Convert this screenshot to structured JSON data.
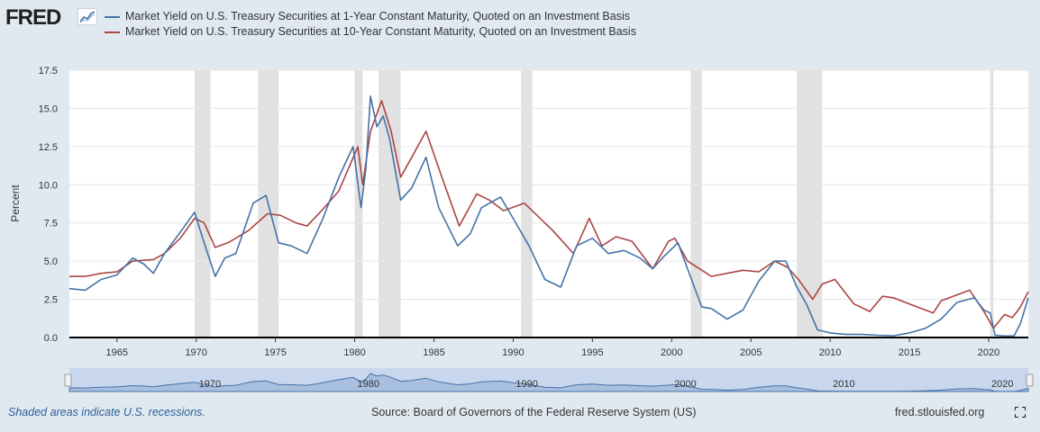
{
  "header": {
    "logo": "FRED"
  },
  "colors": {
    "one_year": "#4572a7",
    "ten_year": "#aa4643",
    "recession": "#e1e1e1",
    "navigator": "#4572a7"
  },
  "footer": {
    "recession_note": "Shaded areas indicate U.S. recessions.",
    "source": "Source: Board of Governors of the Federal Reserve System (US)",
    "site": "fred.stlouisfed.org"
  },
  "chart_data": {
    "type": "line",
    "title": "",
    "xlabel": "",
    "ylabel": "Percent",
    "xlim": [
      1962,
      2022.5
    ],
    "ylim": [
      0,
      17.5
    ],
    "yticks": [
      0.0,
      2.5,
      5.0,
      7.5,
      10.0,
      12.5,
      15.0,
      17.5
    ],
    "ytick_labels": [
      "0.0",
      "2.5",
      "5.0",
      "7.5",
      "10.0",
      "12.5",
      "15.0",
      "17.5"
    ],
    "xticks": [
      1965,
      1970,
      1975,
      1980,
      1985,
      1990,
      1995,
      2000,
      2005,
      2010,
      2015,
      2020
    ],
    "navigator_labels": [
      1970,
      1980,
      1990,
      2000,
      2010,
      2020
    ],
    "recessions": [
      [
        1969.9,
        1970.9
      ],
      [
        1973.9,
        1975.2
      ],
      [
        1980.0,
        1980.5
      ],
      [
        1981.5,
        1982.9
      ],
      [
        1990.5,
        1991.2
      ],
      [
        2001.2,
        2001.9
      ],
      [
        2007.9,
        2009.5
      ],
      [
        2020.1,
        2020.3
      ]
    ],
    "series": [
      {
        "name": "Market Yield on U.S. Treasury Securities at 1-Year Constant Maturity, Quoted on an Investment Basis",
        "x": [
          1962,
          1963,
          1964,
          1965,
          1966,
          1966.7,
          1967.3,
          1968,
          1969,
          1969.9,
          1970.5,
          1971.2,
          1971.8,
          1972.5,
          1973.6,
          1974.4,
          1975.2,
          1976,
          1977,
          1978,
          1979,
          1979.9,
          1980.4,
          1980.7,
          1981,
          1981.4,
          1981.8,
          1982.2,
          1982.9,
          1983.6,
          1984.5,
          1985.3,
          1986.5,
          1987.3,
          1988,
          1989.2,
          1990,
          1991,
          1992,
          1993,
          1994,
          1995,
          1996,
          1997,
          1998,
          1998.8,
          1999.5,
          2000.4,
          2001,
          2001.9,
          2002.5,
          2003.5,
          2004.5,
          2005.5,
          2006.5,
          2007.2,
          2007.9,
          2008.5,
          2009.2,
          2010,
          2011,
          2012,
          2013,
          2014,
          2015,
          2016,
          2017,
          2018,
          2019.1,
          2019.7,
          2020.1,
          2020.4,
          2021,
          2021.6,
          2022,
          2022.5
        ],
        "y": [
          3.2,
          3.1,
          3.8,
          4.1,
          5.2,
          4.8,
          4.2,
          5.5,
          6.9,
          8.2,
          6.2,
          4.0,
          5.2,
          5.5,
          8.8,
          9.3,
          6.2,
          6.0,
          5.5,
          7.8,
          10.5,
          12.5,
          8.5,
          11.0,
          15.8,
          13.8,
          14.5,
          13.0,
          9.0,
          9.8,
          11.8,
          8.5,
          6.0,
          6.8,
          8.5,
          9.2,
          7.8,
          6.0,
          3.8,
          3.3,
          6.0,
          6.5,
          5.5,
          5.7,
          5.2,
          4.5,
          5.3,
          6.2,
          4.5,
          2.0,
          1.9,
          1.2,
          1.8,
          3.7,
          5.0,
          5.0,
          3.3,
          2.2,
          0.5,
          0.3,
          0.2,
          0.2,
          0.15,
          0.12,
          0.3,
          0.6,
          1.2,
          2.3,
          2.6,
          1.8,
          1.6,
          0.15,
          0.1,
          0.1,
          0.9,
          2.6
        ]
      },
      {
        "name": "Market Yield on U.S. Treasury Securities at 10-Year Constant Maturity, Quoted on an Investment Basis",
        "x": [
          1962,
          1963,
          1964,
          1965,
          1966,
          1967.3,
          1968,
          1969,
          1969.9,
          1970.5,
          1971.2,
          1972,
          1973.3,
          1974.5,
          1975.3,
          1976.3,
          1977,
          1978,
          1979,
          1980.2,
          1980.5,
          1981,
          1981.7,
          1982.3,
          1982.9,
          1983.6,
          1984.5,
          1985.5,
          1986.6,
          1987.7,
          1988.5,
          1989.4,
          1990.7,
          1991.5,
          1992.5,
          1993.8,
          1994.8,
          1995.6,
          1996.5,
          1997.5,
          1998.8,
          1999.8,
          2000.2,
          2001,
          2002.5,
          2003.5,
          2004.5,
          2005.5,
          2006.5,
          2007.3,
          2008,
          2008.9,
          2009.5,
          2010.3,
          2010.9,
          2011.5,
          2012.5,
          2013.3,
          2014,
          2015,
          2016.5,
          2017,
          2018.8,
          2019.7,
          2020.3,
          2021,
          2021.5,
          2022,
          2022.5
        ],
        "y": [
          4.0,
          4.0,
          4.2,
          4.3,
          5.0,
          5.1,
          5.5,
          6.5,
          7.8,
          7.5,
          5.9,
          6.2,
          7.0,
          8.1,
          8.0,
          7.5,
          7.3,
          8.4,
          9.6,
          12.5,
          10.0,
          13.5,
          15.5,
          13.5,
          10.5,
          11.8,
          13.5,
          10.5,
          7.3,
          9.4,
          9.0,
          8.3,
          8.8,
          8.0,
          7.0,
          5.5,
          7.8,
          6.0,
          6.6,
          6.3,
          4.5,
          6.3,
          6.5,
          5.0,
          4.0,
          4.2,
          4.4,
          4.3,
          5.0,
          4.6,
          3.8,
          2.5,
          3.5,
          3.8,
          3.0,
          2.2,
          1.7,
          2.7,
          2.6,
          2.2,
          1.6,
          2.4,
          3.1,
          1.7,
          0.6,
          1.5,
          1.3,
          2.0,
          3.0
        ]
      }
    ]
  }
}
